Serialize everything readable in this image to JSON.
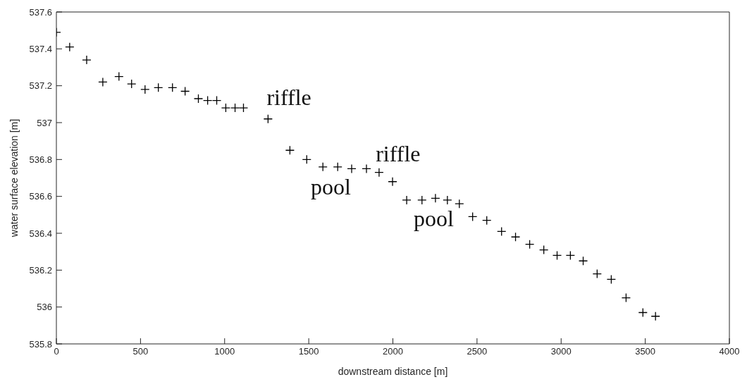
{
  "chart_data": {
    "type": "scatter",
    "xlabel": "downstream distance [m]",
    "ylabel": "water surface elevation [m]",
    "x": [
      0,
      79,
      180,
      276,
      372,
      447,
      527,
      606,
      690,
      765,
      844,
      899,
      953,
      1007,
      1062,
      1112,
      1258,
      1388,
      1488,
      1584,
      1672,
      1755,
      1843,
      1918,
      1998,
      2082,
      2173,
      2253,
      2324,
      2395,
      2474,
      2558,
      2646,
      2729,
      2813,
      2897,
      2976,
      3055,
      3131,
      3214,
      3298,
      3386,
      3486,
      3561
    ],
    "series": [
      {
        "color": "#000000",
        "values": [
          537.49,
          537.41,
          537.34,
          537.22,
          537.25,
          537.21,
          537.18,
          537.19,
          537.19,
          537.17,
          537.13,
          537.12,
          537.12,
          537.08,
          537.08,
          537.08,
          537.02,
          536.85,
          536.8,
          536.76,
          536.76,
          536.75,
          536.75,
          536.73,
          536.68,
          536.58,
          536.58,
          536.59,
          536.58,
          536.56,
          536.49,
          536.47,
          536.41,
          536.38,
          536.34,
          536.31,
          536.28,
          536.28,
          536.25,
          536.18,
          536.15,
          536.05,
          535.97,
          535.95
        ]
      }
    ],
    "marker": "cross",
    "grid": false,
    "legend": false,
    "xlim": [
      0,
      4000
    ],
    "xticks": [
      0,
      500,
      1000,
      1500,
      2000,
      2500,
      3000,
      3500,
      4000
    ],
    "ylim": [
      535.8,
      537.6
    ],
    "yticks": [
      535.8,
      536,
      536.2,
      536.4,
      536.6,
      536.8,
      537,
      537.2,
      537.4,
      537.6
    ],
    "annotations": [
      "riffle",
      "riffle",
      "pool",
      "pool"
    ]
  }
}
